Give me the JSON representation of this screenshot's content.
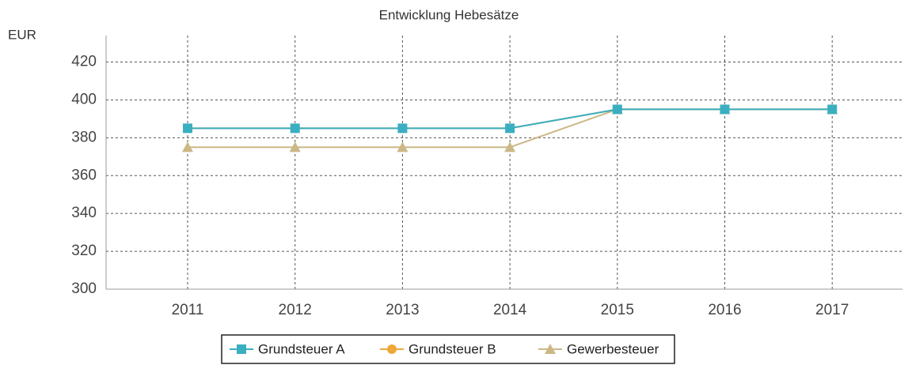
{
  "chart_data": {
    "type": "line",
    "title": "Entwicklung Hebesätze",
    "y_label": "EUR",
    "categories": [
      "2011",
      "2012",
      "2013",
      "2014",
      "2015",
      "2016",
      "2017"
    ],
    "series": [
      {
        "name": "Grundsteuer A",
        "color": "#3aafc0",
        "marker": "square",
        "values": [
          385,
          385,
          385,
          385,
          395,
          395,
          395
        ]
      },
      {
        "name": "Grundsteuer B",
        "color": "#eea83a",
        "marker": "circle",
        "values": [
          385,
          385,
          385,
          385,
          395,
          395,
          395
        ]
      },
      {
        "name": "Gewerbesteuer",
        "color": "#cbb886",
        "marker": "triangle",
        "values": [
          375,
          375,
          375,
          375,
          395,
          395,
          395
        ]
      }
    ],
    "ylim": [
      300,
      434
    ],
    "yticks": [
      300,
      320,
      340,
      360,
      380,
      400,
      420
    ],
    "grid": true,
    "legend": "bottom"
  }
}
